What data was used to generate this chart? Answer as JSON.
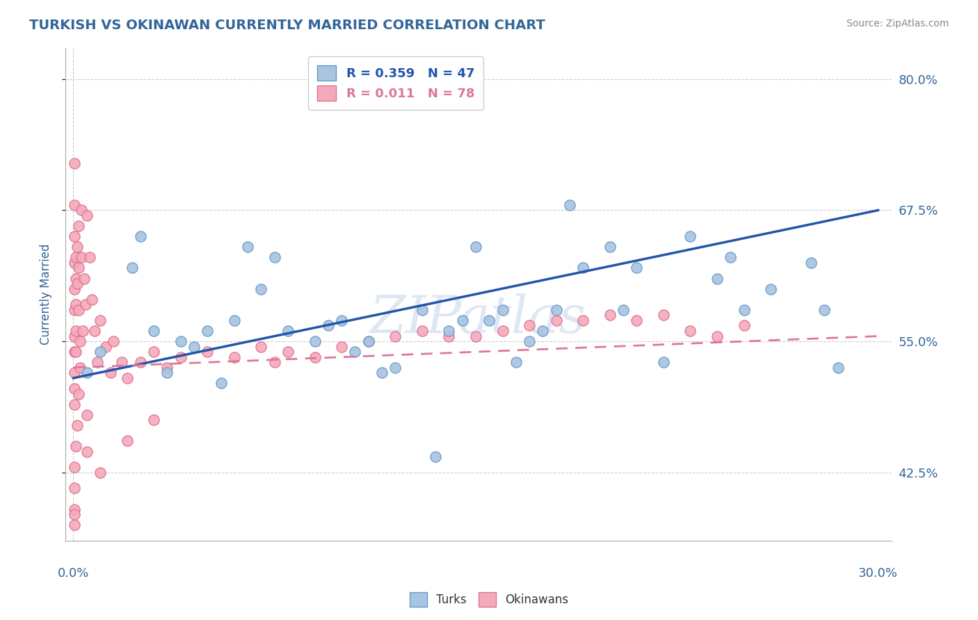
{
  "title": "TURKISH VS OKINAWAN CURRENTLY MARRIED CORRELATION CHART",
  "source_text": "Source: ZipAtlas.com",
  "ylabel": "Currently Married",
  "watermark": "ZIPatlas",
  "legend_turks": "R = 0.359   N = 47",
  "legend_okinawans": "R = 0.011   N = 78",
  "turks_color": "#A8C4E0",
  "turks_edge_color": "#6699CC",
  "okinawans_color": "#F4AABB",
  "okinawans_edge_color": "#E07090",
  "turks_line_color": "#2255AA",
  "okinawans_line_color": "#DD7799",
  "title_color": "#336699",
  "axis_label_color": "#336699",
  "tick_color": "#336699",
  "background_color": "#FFFFFF",
  "plot_bg_color": "#FFFFFF",
  "turks_x": [
    0.5,
    1.0,
    2.2,
    3.0,
    4.0,
    4.5,
    5.0,
    5.5,
    6.0,
    7.0,
    7.5,
    8.0,
    9.0,
    9.5,
    10.0,
    10.5,
    11.0,
    11.5,
    12.0,
    13.0,
    14.0,
    14.5,
    15.0,
    15.5,
    16.0,
    16.5,
    17.0,
    17.5,
    18.0,
    18.5,
    19.0,
    20.0,
    20.5,
    21.0,
    22.0,
    23.0,
    24.0,
    24.5,
    25.0,
    26.0,
    27.5,
    28.0,
    28.5,
    2.5,
    6.5,
    3.5,
    13.5
  ],
  "turks_y": [
    52.0,
    54.0,
    62.0,
    56.0,
    55.0,
    54.5,
    56.0,
    51.0,
    57.0,
    60.0,
    63.0,
    56.0,
    55.0,
    56.5,
    57.0,
    54.0,
    55.0,
    52.0,
    52.5,
    58.0,
    56.0,
    57.0,
    64.0,
    57.0,
    58.0,
    53.0,
    55.0,
    56.0,
    58.0,
    68.0,
    62.0,
    64.0,
    58.0,
    62.0,
    53.0,
    65.0,
    61.0,
    63.0,
    58.0,
    60.0,
    62.5,
    58.0,
    52.5,
    65.0,
    64.0,
    52.0,
    44.0
  ],
  "okinawans_x": [
    0.05,
    0.05,
    0.05,
    0.05,
    0.05,
    0.05,
    0.05,
    0.05,
    0.05,
    0.05,
    0.05,
    0.1,
    0.1,
    0.1,
    0.1,
    0.1,
    0.15,
    0.15,
    0.2,
    0.2,
    0.2,
    0.25,
    0.25,
    0.3,
    0.3,
    0.35,
    0.4,
    0.45,
    0.5,
    0.6,
    0.7,
    0.8,
    0.9,
    1.0,
    1.2,
    1.4,
    1.5,
    1.8,
    2.0,
    2.5,
    3.0,
    3.5,
    4.0,
    5.0,
    6.0,
    7.0,
    7.5,
    8.0,
    9.0,
    10.0,
    11.0,
    12.0,
    13.0,
    14.0,
    15.0,
    16.0,
    17.0,
    18.0,
    19.0,
    20.0,
    21.0,
    22.0,
    23.0,
    24.0,
    25.0,
    3.0,
    2.0,
    0.5,
    1.0,
    0.5,
    0.2,
    0.15,
    0.1,
    0.05,
    0.05,
    0.05,
    0.05,
    0.05
  ],
  "okinawans_y": [
    72.0,
    68.0,
    65.0,
    62.5,
    60.0,
    58.0,
    55.5,
    54.0,
    52.0,
    50.5,
    49.0,
    63.0,
    61.0,
    58.5,
    56.0,
    54.0,
    64.0,
    60.5,
    66.0,
    62.0,
    58.0,
    55.0,
    52.5,
    67.5,
    63.0,
    56.0,
    61.0,
    58.5,
    67.0,
    63.0,
    59.0,
    56.0,
    53.0,
    57.0,
    54.5,
    52.0,
    55.0,
    53.0,
    51.5,
    53.0,
    54.0,
    52.5,
    53.5,
    54.0,
    53.5,
    54.5,
    53.0,
    54.0,
    53.5,
    54.5,
    55.0,
    55.5,
    56.0,
    55.5,
    55.5,
    56.0,
    56.5,
    57.0,
    57.0,
    57.5,
    57.0,
    57.5,
    56.0,
    55.5,
    56.5,
    47.5,
    45.5,
    44.5,
    42.5,
    48.0,
    50.0,
    47.0,
    45.0,
    43.0,
    41.0,
    39.0,
    37.5,
    38.5
  ],
  "turks_line_x0": 0.0,
  "turks_line_y0": 51.5,
  "turks_line_x1": 30.0,
  "turks_line_y1": 67.5,
  "okin_line_x0": 0.0,
  "okin_line_y0": 52.5,
  "okin_line_x1": 30.0,
  "okin_line_y1": 55.5,
  "xlim": [
    -0.3,
    30.5
  ],
  "ylim": [
    36.0,
    83.0
  ],
  "yticks": [
    42.5,
    55.0,
    67.5,
    80.0
  ],
  "figsize": [
    14.06,
    8.92
  ],
  "dpi": 100
}
